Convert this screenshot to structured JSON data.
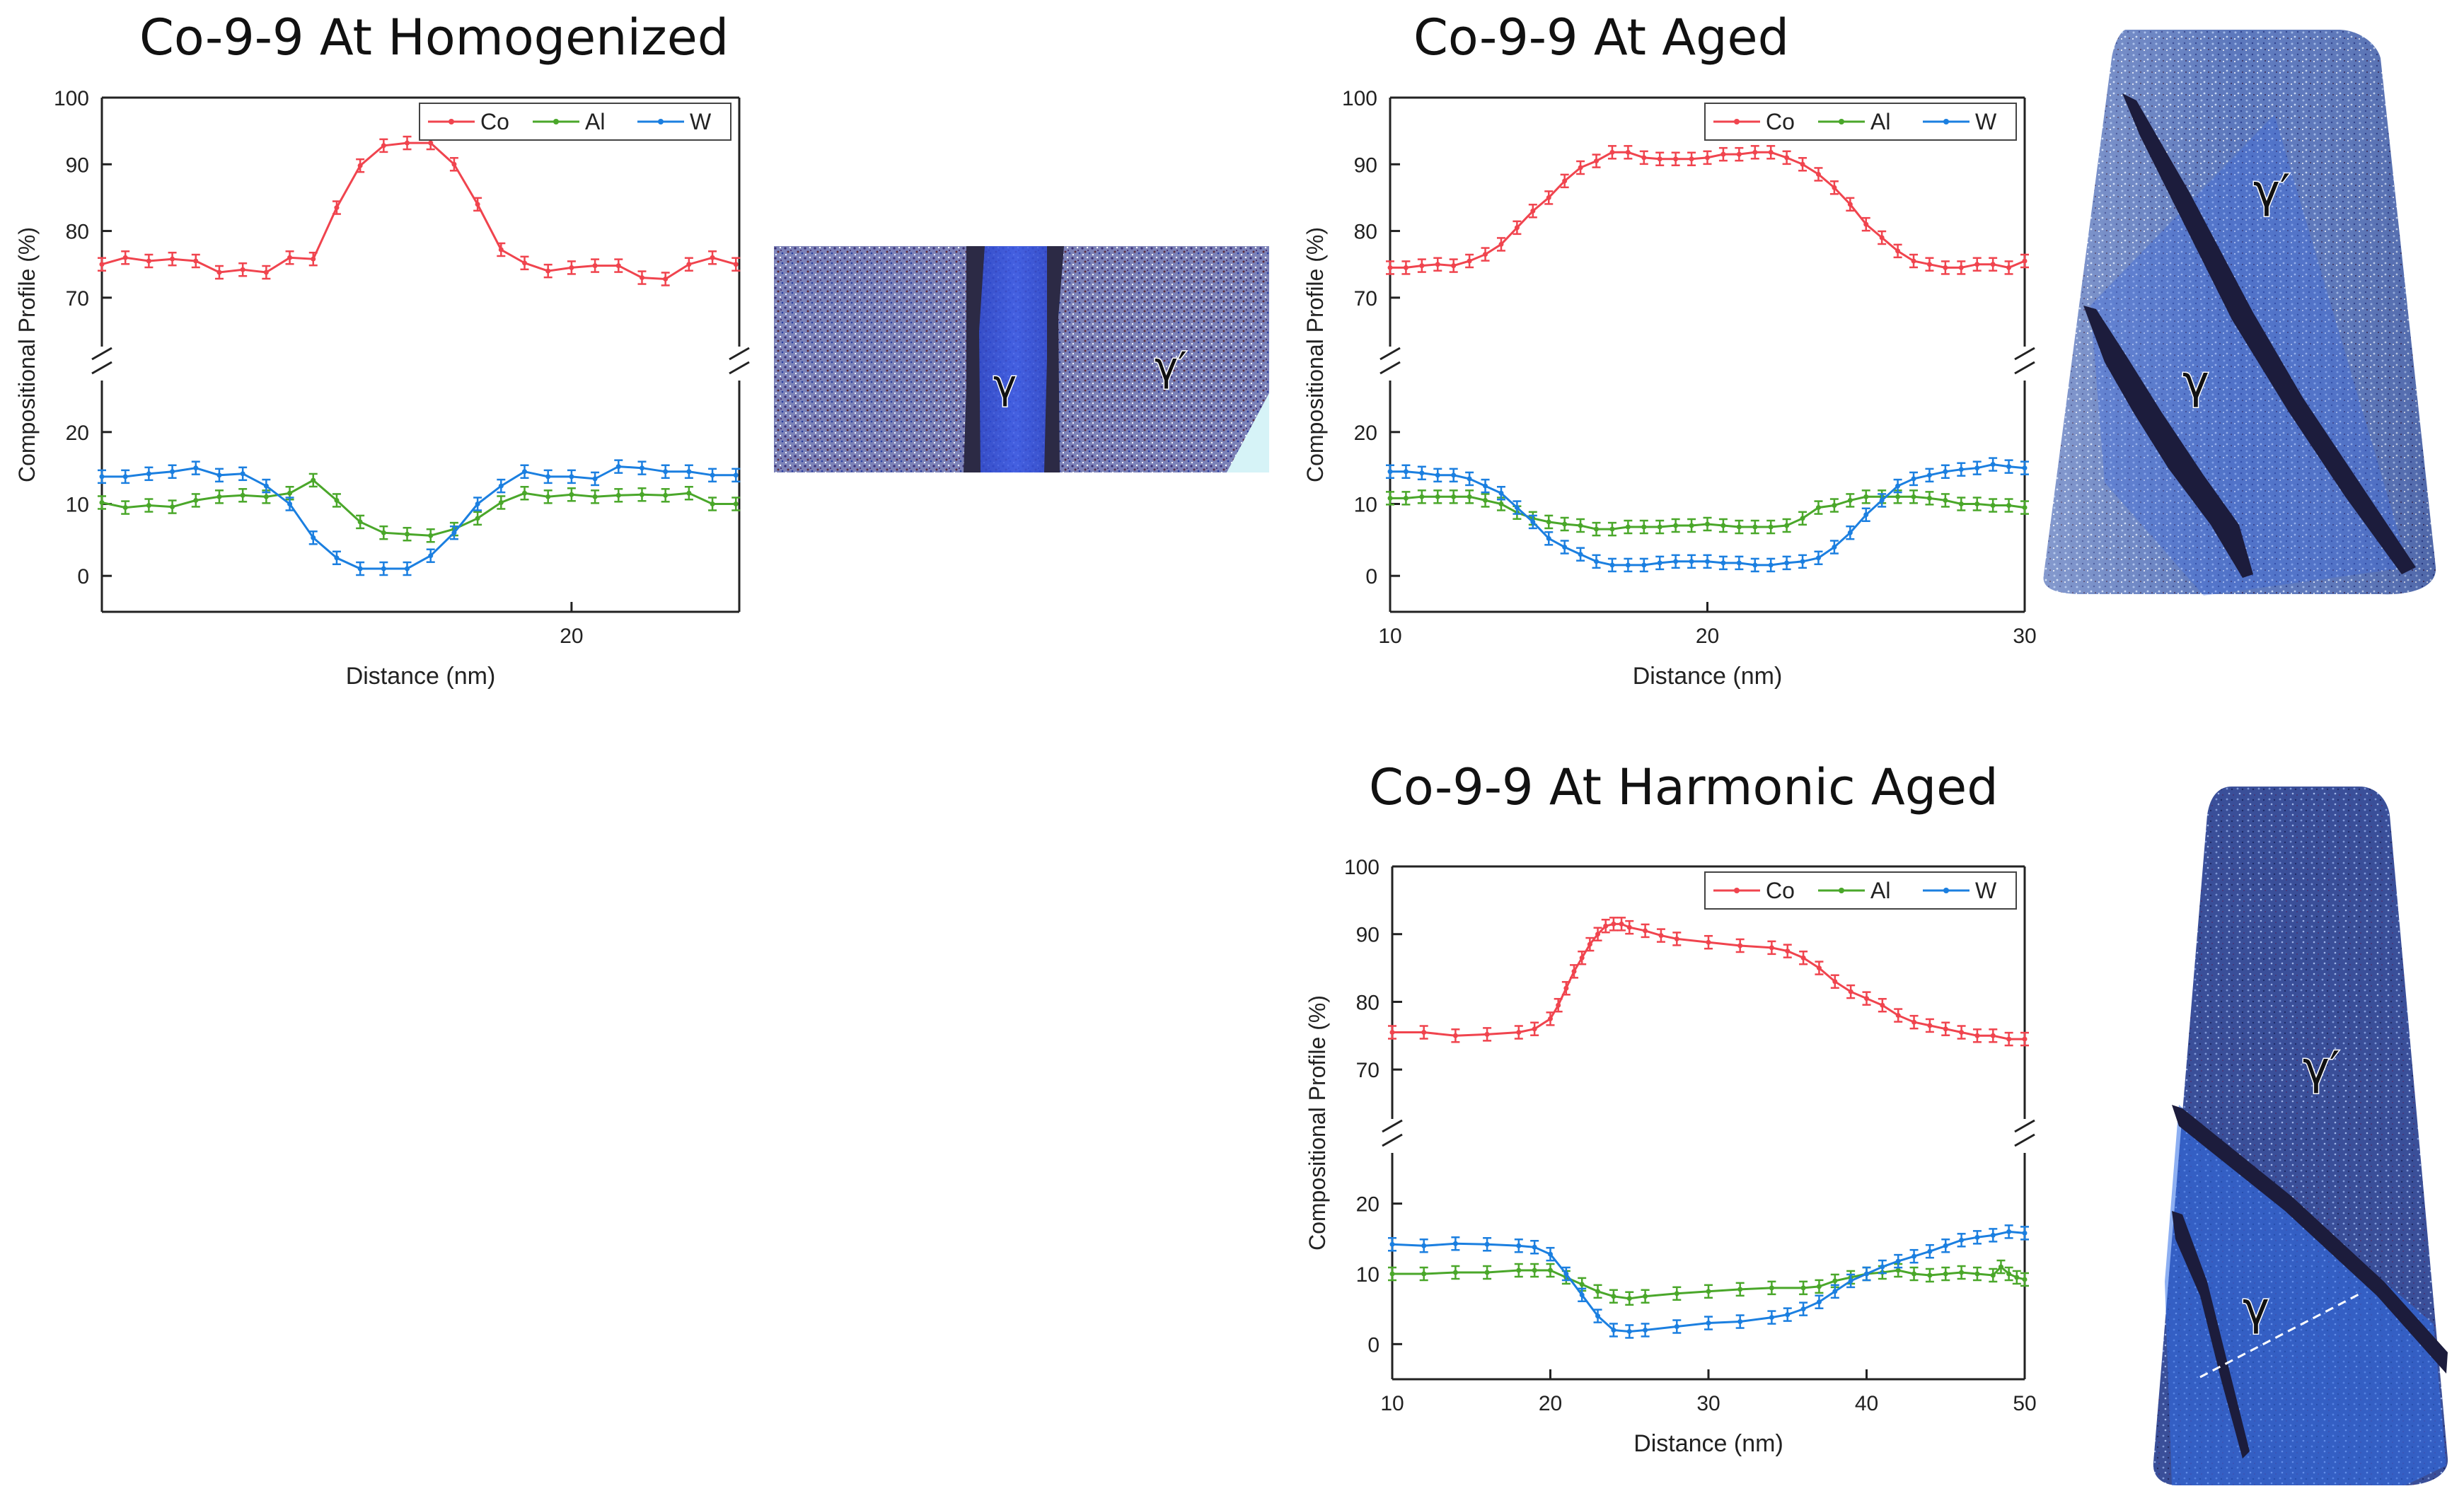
{
  "figure": {
    "titles": {
      "homogenized": "Co-9-9 At Homogenized",
      "aged": "Co-9-9 At Aged",
      "harmonic": "Co-9-9 At Harmonic Aged"
    },
    "colors": {
      "Co": "#f0444e",
      "Al": "#4aa72a",
      "W": "#1b7fe0"
    },
    "annotations": {
      "gamma": "γ",
      "gamma_prime": "γ′"
    }
  },
  "chart_data": [
    {
      "type": "line",
      "id": "homogenized",
      "title": "Co-9-9 At Homogenized",
      "xlabel": "Distance (nm)",
      "ylabel": "Compositional Profile (%)",
      "xlim": [
        6,
        25
      ],
      "xticks": [
        20
      ],
      "ylim_upper": [
        65,
        100
      ],
      "yticks_upper": [
        70,
        80,
        90,
        100
      ],
      "ylim_lower": [
        -5,
        25
      ],
      "yticks_lower": [
        0,
        10,
        20
      ],
      "legend": [
        "Co",
        "Al",
        "W"
      ],
      "series": [
        {
          "name": "Co",
          "x": [
            6,
            6.7,
            7.4,
            8.1,
            8.8,
            9.5,
            10.2,
            10.9,
            11.6,
            12.3,
            13,
            13.7,
            14.4,
            15.1,
            15.8,
            16.5,
            17.2,
            17.9,
            18.6,
            19.3,
            20,
            20.7,
            21.4,
            22.1,
            22.8,
            23.5,
            24.2,
            24.9
          ],
          "y": [
            75,
            76,
            75.5,
            75.8,
            75.5,
            73.8,
            74.2,
            73.8,
            76,
            75.8,
            83.5,
            89.8,
            92.8,
            93.2,
            93.2,
            90,
            84,
            77.2,
            75.2,
            74,
            74.5,
            74.8,
            74.8,
            73,
            72.8,
            75,
            76,
            75
          ]
        },
        {
          "name": "Al",
          "x": [
            6,
            6.7,
            7.4,
            8.1,
            8.8,
            9.5,
            10.2,
            10.9,
            11.6,
            12.3,
            13,
            13.7,
            14.4,
            15.1,
            15.8,
            16.5,
            17.2,
            17.9,
            18.6,
            19.3,
            20,
            20.7,
            21.4,
            22.1,
            22.8,
            23.5,
            24.2,
            24.9
          ],
          "y": [
            10.2,
            9.5,
            9.8,
            9.6,
            10.5,
            11,
            11.2,
            11,
            11.5,
            13.3,
            10.5,
            7.5,
            6,
            5.8,
            5.6,
            6.5,
            8,
            10.2,
            11.5,
            11,
            11.3,
            11,
            11.2,
            11.3,
            11.2,
            11.5,
            10,
            10
          ]
        },
        {
          "name": "W",
          "x": [
            6,
            6.7,
            7.4,
            8.1,
            8.8,
            9.5,
            10.2,
            10.9,
            11.6,
            12.3,
            13,
            13.7,
            14.4,
            15.1,
            15.8,
            16.5,
            17.2,
            17.9,
            18.6,
            19.3,
            20,
            20.7,
            21.4,
            22.1,
            22.8,
            23.5,
            24.2,
            24.9
          ],
          "y": [
            13.8,
            13.8,
            14.2,
            14.5,
            15,
            14,
            14.2,
            12.5,
            10,
            5.3,
            2.5,
            1,
            1,
            1,
            2.8,
            6,
            10,
            12.5,
            14.5,
            13.8,
            13.8,
            13.5,
            15.2,
            15,
            14.5,
            14.5,
            14,
            14
          ]
        }
      ]
    },
    {
      "type": "line",
      "id": "aged",
      "title": "Co-9-9 At Aged",
      "xlabel": "Distance (nm)",
      "ylabel": "Compositional Profile (%)",
      "xlim": [
        10,
        30
      ],
      "xticks": [
        10,
        20,
        30
      ],
      "ylim_upper": [
        65,
        100
      ],
      "yticks_upper": [
        70,
        80,
        90,
        100
      ],
      "ylim_lower": [
        -5,
        25
      ],
      "yticks_lower": [
        0,
        10,
        20
      ],
      "legend": [
        "Co",
        "Al",
        "W"
      ],
      "series": [
        {
          "name": "Co",
          "x": [
            10,
            10.5,
            11,
            11.5,
            12,
            12.5,
            13,
            13.5,
            14,
            14.5,
            15,
            15.5,
            16,
            16.5,
            17,
            17.5,
            18,
            18.5,
            19,
            19.5,
            20,
            20.5,
            21,
            21.5,
            22,
            22.5,
            23,
            23.5,
            24,
            24.5,
            25,
            25.5,
            26,
            26.5,
            27,
            27.5,
            28,
            28.5,
            29,
            29.5,
            30
          ],
          "y": [
            74.5,
            74.5,
            74.8,
            75,
            74.8,
            75.5,
            76.5,
            78,
            80.5,
            83,
            85,
            87.5,
            89.5,
            90.5,
            91.8,
            91.8,
            91,
            90.8,
            90.8,
            90.8,
            91,
            91.5,
            91.5,
            91.8,
            91.8,
            91,
            90,
            88.5,
            86.5,
            84,
            81,
            79,
            77,
            75.5,
            75,
            74.5,
            74.5,
            75,
            75,
            74.5,
            75.5
          ]
        },
        {
          "name": "Al",
          "x": [
            10,
            10.5,
            11,
            11.5,
            12,
            12.5,
            13,
            13.5,
            14,
            14.5,
            15,
            15.5,
            16,
            16.5,
            17,
            17.5,
            18,
            18.5,
            19,
            19.5,
            20,
            20.5,
            21,
            21.5,
            22,
            22.5,
            23,
            23.5,
            24,
            24.5,
            25,
            25.5,
            26,
            26.5,
            27,
            27.5,
            28,
            28.5,
            29,
            29.5,
            30
          ],
          "y": [
            10.8,
            10.8,
            11,
            11,
            11,
            11,
            10.5,
            10,
            8.8,
            8,
            7.5,
            7.2,
            7,
            6.5,
            6.5,
            6.8,
            6.8,
            6.8,
            7,
            7,
            7.2,
            7,
            6.8,
            6.8,
            6.8,
            7,
            8,
            9.5,
            9.8,
            10.5,
            11,
            11,
            11,
            11,
            10.8,
            10.5,
            10,
            10,
            9.8,
            9.8,
            9.5
          ]
        },
        {
          "name": "W",
          "x": [
            10,
            10.5,
            11,
            11.5,
            12,
            12.5,
            13,
            13.5,
            14,
            14.5,
            15,
            15.5,
            16,
            16.5,
            17,
            17.5,
            18,
            18.5,
            19,
            19.5,
            20,
            20.5,
            21,
            21.5,
            22,
            22.5,
            23,
            23.5,
            24,
            24.5,
            25,
            25.5,
            26,
            26.5,
            27,
            27.5,
            28,
            28.5,
            29,
            29.5,
            30
          ],
          "y": [
            14.5,
            14.5,
            14.3,
            14,
            14,
            13.5,
            12.5,
            11.5,
            9.5,
            7.5,
            5.2,
            4,
            3,
            2,
            1.5,
            1.5,
            1.5,
            1.8,
            2,
            2,
            2,
            1.8,
            1.8,
            1.5,
            1.5,
            1.8,
            2,
            2.5,
            4,
            6,
            8.5,
            10.5,
            12.5,
            13.5,
            14,
            14.5,
            14.8,
            15,
            15.5,
            15.2,
            15
          ]
        }
      ]
    },
    {
      "type": "line",
      "id": "harmonic",
      "title": "Co-9-9 At Harmonic Aged",
      "xlabel": "Distance (nm)",
      "ylabel": "Compositional Profile (%)",
      "xlim": [
        10,
        50
      ],
      "xticks": [
        10,
        20,
        30,
        40,
        50
      ],
      "ylim_upper": [
        65,
        100
      ],
      "yticks_upper": [
        70,
        80,
        90,
        100
      ],
      "ylim_lower": [
        -5,
        25
      ],
      "yticks_lower": [
        0,
        10,
        20
      ],
      "legend": [
        "Co",
        "Al",
        "W"
      ],
      "series": [
        {
          "name": "Co",
          "x": [
            10,
            12,
            14,
            16,
            18,
            19,
            20,
            20.5,
            21,
            21.5,
            22,
            22.5,
            23,
            23.5,
            24,
            24.5,
            25,
            26,
            27,
            28,
            30,
            32,
            34,
            35,
            36,
            37,
            38,
            39,
            40,
            41,
            42,
            43,
            44,
            45,
            46,
            47,
            48,
            49,
            50
          ],
          "y": [
            75.5,
            75.5,
            75,
            75.2,
            75.5,
            76,
            77.5,
            79.5,
            82,
            84.5,
            86.5,
            88.5,
            90,
            91.2,
            91.5,
            91.5,
            91,
            90.5,
            89.8,
            89.3,
            88.8,
            88.3,
            88,
            87.5,
            86.5,
            85,
            83,
            81.5,
            80.5,
            79.5,
            78,
            77,
            76.5,
            76,
            75.5,
            75,
            75,
            74.5,
            74.5
          ]
        },
        {
          "name": "Al",
          "x": [
            10,
            12,
            14,
            16,
            18,
            19,
            20,
            21,
            22,
            23,
            24,
            25,
            26,
            28,
            30,
            32,
            34,
            36,
            37,
            38,
            39,
            40,
            41,
            42,
            43,
            44,
            45,
            46,
            47,
            48,
            48.5,
            49,
            49.5,
            50
          ],
          "y": [
            10,
            10,
            10.2,
            10.2,
            10.5,
            10.5,
            10.5,
            9.5,
            8.5,
            7.5,
            6.8,
            6.5,
            6.8,
            7.2,
            7.5,
            7.8,
            8,
            8,
            8.2,
            9,
            9.5,
            10,
            10.2,
            10.5,
            10,
            9.8,
            10,
            10.2,
            10,
            9.8,
            11,
            10,
            9.5,
            9.2
          ]
        },
        {
          "name": "W",
          "x": [
            10,
            12,
            14,
            16,
            18,
            19,
            20,
            21,
            22,
            23,
            24,
            25,
            26,
            28,
            30,
            32,
            34,
            35,
            36,
            37,
            38,
            39,
            40,
            41,
            42,
            43,
            44,
            45,
            46,
            47,
            48,
            49,
            50
          ],
          "y": [
            14.2,
            14,
            14.3,
            14.2,
            14,
            13.8,
            12.8,
            10,
            7,
            4,
            2,
            1.8,
            2,
            2.5,
            3,
            3.2,
            3.8,
            4.2,
            5,
            6,
            7.5,
            9,
            10,
            11,
            11.8,
            12.5,
            13.2,
            14,
            14.8,
            15.2,
            15.5,
            16,
            15.8
          ]
        }
      ]
    }
  ]
}
